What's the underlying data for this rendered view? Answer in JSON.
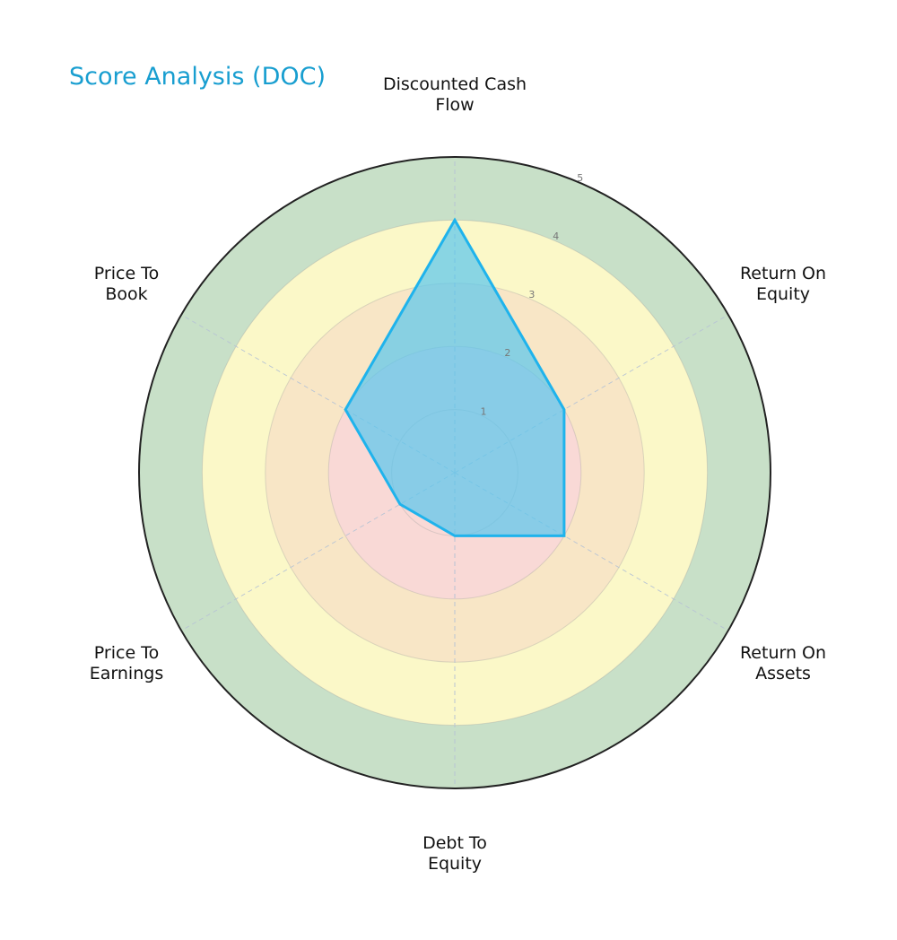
{
  "title": "Score Analysis (DOC)",
  "colors": {
    "title": "#189ed0",
    "band_0_2": "#f9d9d6",
    "band_2_3": "#f8e6c6",
    "band_3_4": "#fbf8c8",
    "band_4_5": "#c8e0c8",
    "fill": "#58c6ee",
    "stroke": "#1fb3ec"
  },
  "chart_data": {
    "type": "radar",
    "title": "Score Analysis (DOC)",
    "categories": [
      "Discounted Cash Flow",
      "Return On Equity",
      "Return On Assets",
      "Debt To Equity",
      "Price To Earnings",
      "Price To Book"
    ],
    "values": [
      4,
      2,
      2,
      1,
      1,
      2
    ],
    "rlim": [
      0,
      5
    ],
    "rticks": [
      1,
      2,
      3,
      4,
      5
    ],
    "bands": [
      {
        "from": 0,
        "to": 2,
        "color": "#f9d9d6"
      },
      {
        "from": 2,
        "to": 3,
        "color": "#f8e6c6"
      },
      {
        "from": 3,
        "to": 4,
        "color": "#fbf8c8"
      },
      {
        "from": 4,
        "to": 5,
        "color": "#c8e0c8"
      }
    ],
    "grid": true,
    "legend": false
  },
  "labels": {
    "dcf": [
      "Discounted Cash",
      "Flow"
    ],
    "roe": [
      "Return On",
      "Equity"
    ],
    "roa": [
      "Return On",
      "Assets"
    ],
    "dte": [
      "Debt To",
      "Equity"
    ],
    "pe": [
      "Price To",
      "Earnings"
    ],
    "pb": [
      "Price To",
      "Book"
    ]
  },
  "ticks": [
    "1",
    "2",
    "3",
    "4",
    "5"
  ]
}
